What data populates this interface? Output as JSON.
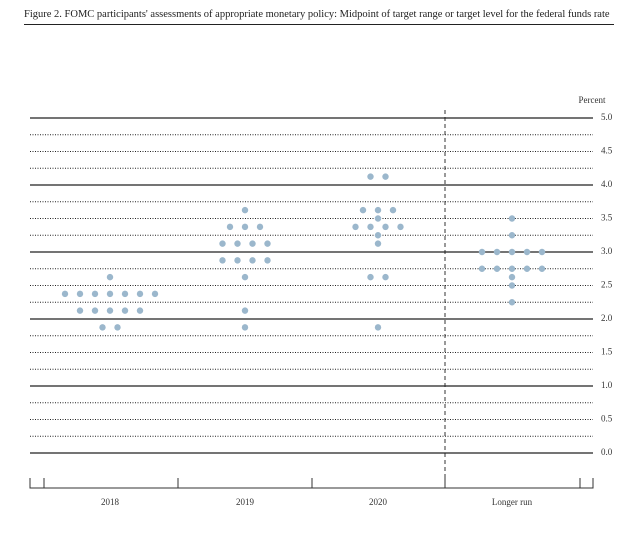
{
  "chart_data": {
    "type": "dot",
    "title": "Figure 2. FOMC participants' assessments of appropriate monetary policy: Midpoint of target range or target level for the federal funds rate",
    "y_label": "Percent",
    "color": "#9bb7cc",
    "ylim": [
      0,
      5
    ],
    "yticks": [
      {
        "value": 0,
        "label": "0.0"
      },
      0.5,
      {
        "value": 1,
        "label": "1.0"
      },
      1.5,
      {
        "value": 2,
        "label": "2.0"
      },
      2.5,
      {
        "value": 3,
        "label": "3.0"
      },
      3.5,
      {
        "value": 4,
        "label": "4.0"
      },
      4.5,
      {
        "value": 5,
        "label": "5.0"
      }
    ],
    "categories": [
      "2018",
      "2019",
      "2020",
      "Longer run"
    ],
    "groups": [
      [
        {
          "rate": 2.625,
          "count": 1
        },
        {
          "rate": 2.375,
          "count": 7
        },
        {
          "rate": 2.125,
          "count": 5
        },
        {
          "rate": 1.875,
          "count": 2
        }
      ],
      [
        {
          "rate": 3.625,
          "count": 1
        },
        {
          "rate": 3.375,
          "count": 3
        },
        {
          "rate": 3.125,
          "count": 4
        },
        {
          "rate": 2.875,
          "count": 4
        },
        {
          "rate": 2.625,
          "count": 1
        },
        {
          "rate": 2.125,
          "count": 1
        },
        {
          "rate": 1.875,
          "count": 1
        }
      ],
      [
        {
          "rate": 4.125,
          "count": 2
        },
        {
          "rate": 3.625,
          "count": 3
        },
        {
          "rate": 3.5,
          "count": 1
        },
        {
          "rate": 3.375,
          "count": 4
        },
        {
          "rate": 3.25,
          "count": 1
        },
        {
          "rate": 3.125,
          "count": 1
        },
        {
          "rate": 2.625,
          "count": 2
        },
        {
          "rate": 1.875,
          "count": 1
        }
      ],
      [
        {
          "rate": 3.5,
          "count": 1
        },
        {
          "rate": 3.25,
          "count": 1
        },
        {
          "rate": 3.0,
          "count": 5
        },
        {
          "rate": 2.75,
          "count": 5
        },
        {
          "rate": 2.625,
          "count": 1
        },
        {
          "rate": 2.5,
          "count": 1
        },
        {
          "rate": 2.25,
          "count": 1
        }
      ]
    ]
  }
}
